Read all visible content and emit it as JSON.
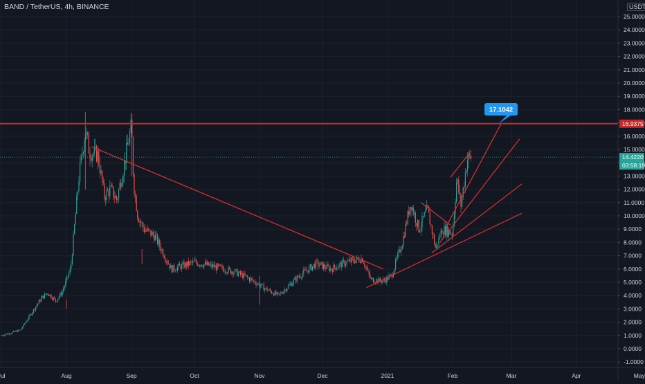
{
  "header": {
    "symbol_title": "BAND / TetherUS, 4h, BINANCE",
    "currency": "USDT"
  },
  "colors": {
    "background": "#131722",
    "grid": "#1e222d",
    "axis_text": "#d1d4dc",
    "candle_up": "#26a69a",
    "candle_down": "#ef5350",
    "drawing_red": "#d32f2f",
    "resistance_line": "#c62828",
    "callout_blue": "#2196f3",
    "last_price_teal": "#26a69a"
  },
  "chart_data": {
    "type": "line",
    "title": "BAND / TetherUS, 4h, BINANCE",
    "xlabel": "",
    "ylabel": "",
    "x_ticks": [
      "Jul",
      "Aug",
      "Sep",
      "Oct",
      "Nov",
      "Dec",
      "2021",
      "Feb",
      "Mar",
      "Apr",
      "May"
    ],
    "y_ticks": [
      "-1.0000",
      "0.0000",
      "1.0000",
      "2.0000",
      "3.0000",
      "4.0000",
      "5.0000",
      "6.0000",
      "7.0000",
      "8.0000",
      "9.0000",
      "10.0000",
      "11.0000",
      "12.0000",
      "13.0000",
      "14.0000",
      "15.0000",
      "16.0000",
      "17.0000",
      "18.0000",
      "19.0000",
      "20.0000",
      "21.0000",
      "22.0000",
      "23.0000",
      "24.0000",
      "25.0000"
    ],
    "ylim": [
      -1.8,
      26.3
    ],
    "grid": true,
    "series": [
      {
        "x": [
          "2020-07-01",
          "2020-07-10",
          "2020-07-20",
          "2020-07-23",
          "2020-07-27",
          "2020-07-30",
          "2020-08-03",
          "2020-08-05",
          "2020-08-07",
          "2020-08-10",
          "2020-08-12",
          "2020-08-16",
          "2020-08-19",
          "2020-08-22",
          "2020-08-25",
          "2020-08-28",
          "2020-09-01",
          "2020-09-02",
          "2020-09-04",
          "2020-09-07",
          "2020-09-12",
          "2020-09-20",
          "2020-10-01",
          "2020-10-10",
          "2020-10-20",
          "2020-10-28",
          "2020-11-04",
          "2020-11-10",
          "2020-11-20",
          "2020-11-28",
          "2020-12-05",
          "2020-12-12",
          "2020-12-20",
          "2020-12-24",
          "2020-12-30",
          "2021-01-03",
          "2021-01-08",
          "2021-01-12",
          "2021-01-16",
          "2021-01-20",
          "2021-01-24",
          "2021-01-27",
          "2021-02-01",
          "2021-02-03",
          "2021-02-05",
          "2021-02-08",
          "2021-02-10"
        ],
        "y": [
          1.0,
          1.4,
          3.8,
          4.2,
          3.6,
          4.3,
          6.0,
          9.5,
          13.0,
          16.5,
          14.8,
          14.6,
          11.5,
          12.0,
          11.2,
          13.5,
          16.8,
          12.5,
          10.0,
          9.0,
          8.5,
          6.0,
          6.5,
          6.2,
          5.8,
          5.2,
          4.5,
          4.0,
          5.5,
          6.4,
          6.0,
          6.5,
          6.8,
          5.2,
          5.1,
          5.5,
          8.0,
          11.0,
          9.0,
          10.5,
          7.5,
          9.0,
          8.7,
          12.8,
          10.8,
          14.3,
          14.4
        ]
      }
    ],
    "annotations": {
      "resistance_price": "16.9375",
      "last_price": "14.4220",
      "countdown": "03:58:19",
      "target_callout": "17.1042"
    }
  }
}
